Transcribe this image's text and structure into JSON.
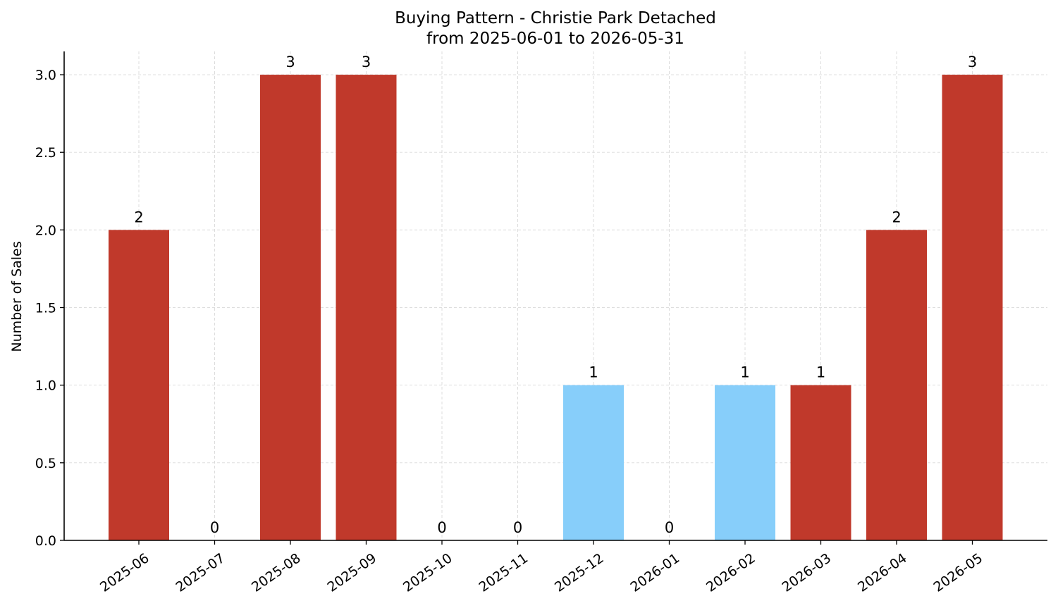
{
  "chart_data": {
    "type": "bar",
    "title": "Buying Pattern - Christie Park Detached",
    "subtitle": "from 2025-06-01 to 2026-05-31",
    "xlabel": "",
    "ylabel": "Number of Sales",
    "categories": [
      "2025-06",
      "2025-07",
      "2025-08",
      "2025-09",
      "2025-10",
      "2025-11",
      "2025-12",
      "2026-01",
      "2026-02",
      "2026-03",
      "2026-04",
      "2026-05"
    ],
    "values": [
      2,
      0,
      3,
      3,
      0,
      0,
      1,
      0,
      1,
      1,
      2,
      3
    ],
    "data_labels": [
      "2",
      "0",
      "3",
      "3",
      "0",
      "0",
      "1",
      "0",
      "1",
      "1",
      "2",
      "3"
    ],
    "bar_colors": [
      "#c0392b",
      "#c0392b",
      "#c0392b",
      "#c0392b",
      "#c0392b",
      "#c0392b",
      "#87cefa",
      "#c0392b",
      "#87cefa",
      "#c0392b",
      "#c0392b",
      "#c0392b"
    ],
    "ylim": [
      0,
      3.15
    ],
    "yticks": [
      0.0,
      0.5,
      1.0,
      1.5,
      2.0,
      2.5,
      3.0
    ],
    "ytick_labels": [
      "0.0",
      "0.5",
      "1.0",
      "1.5",
      "2.0",
      "2.5",
      "3.0"
    ],
    "grid": true,
    "legend": "none"
  }
}
